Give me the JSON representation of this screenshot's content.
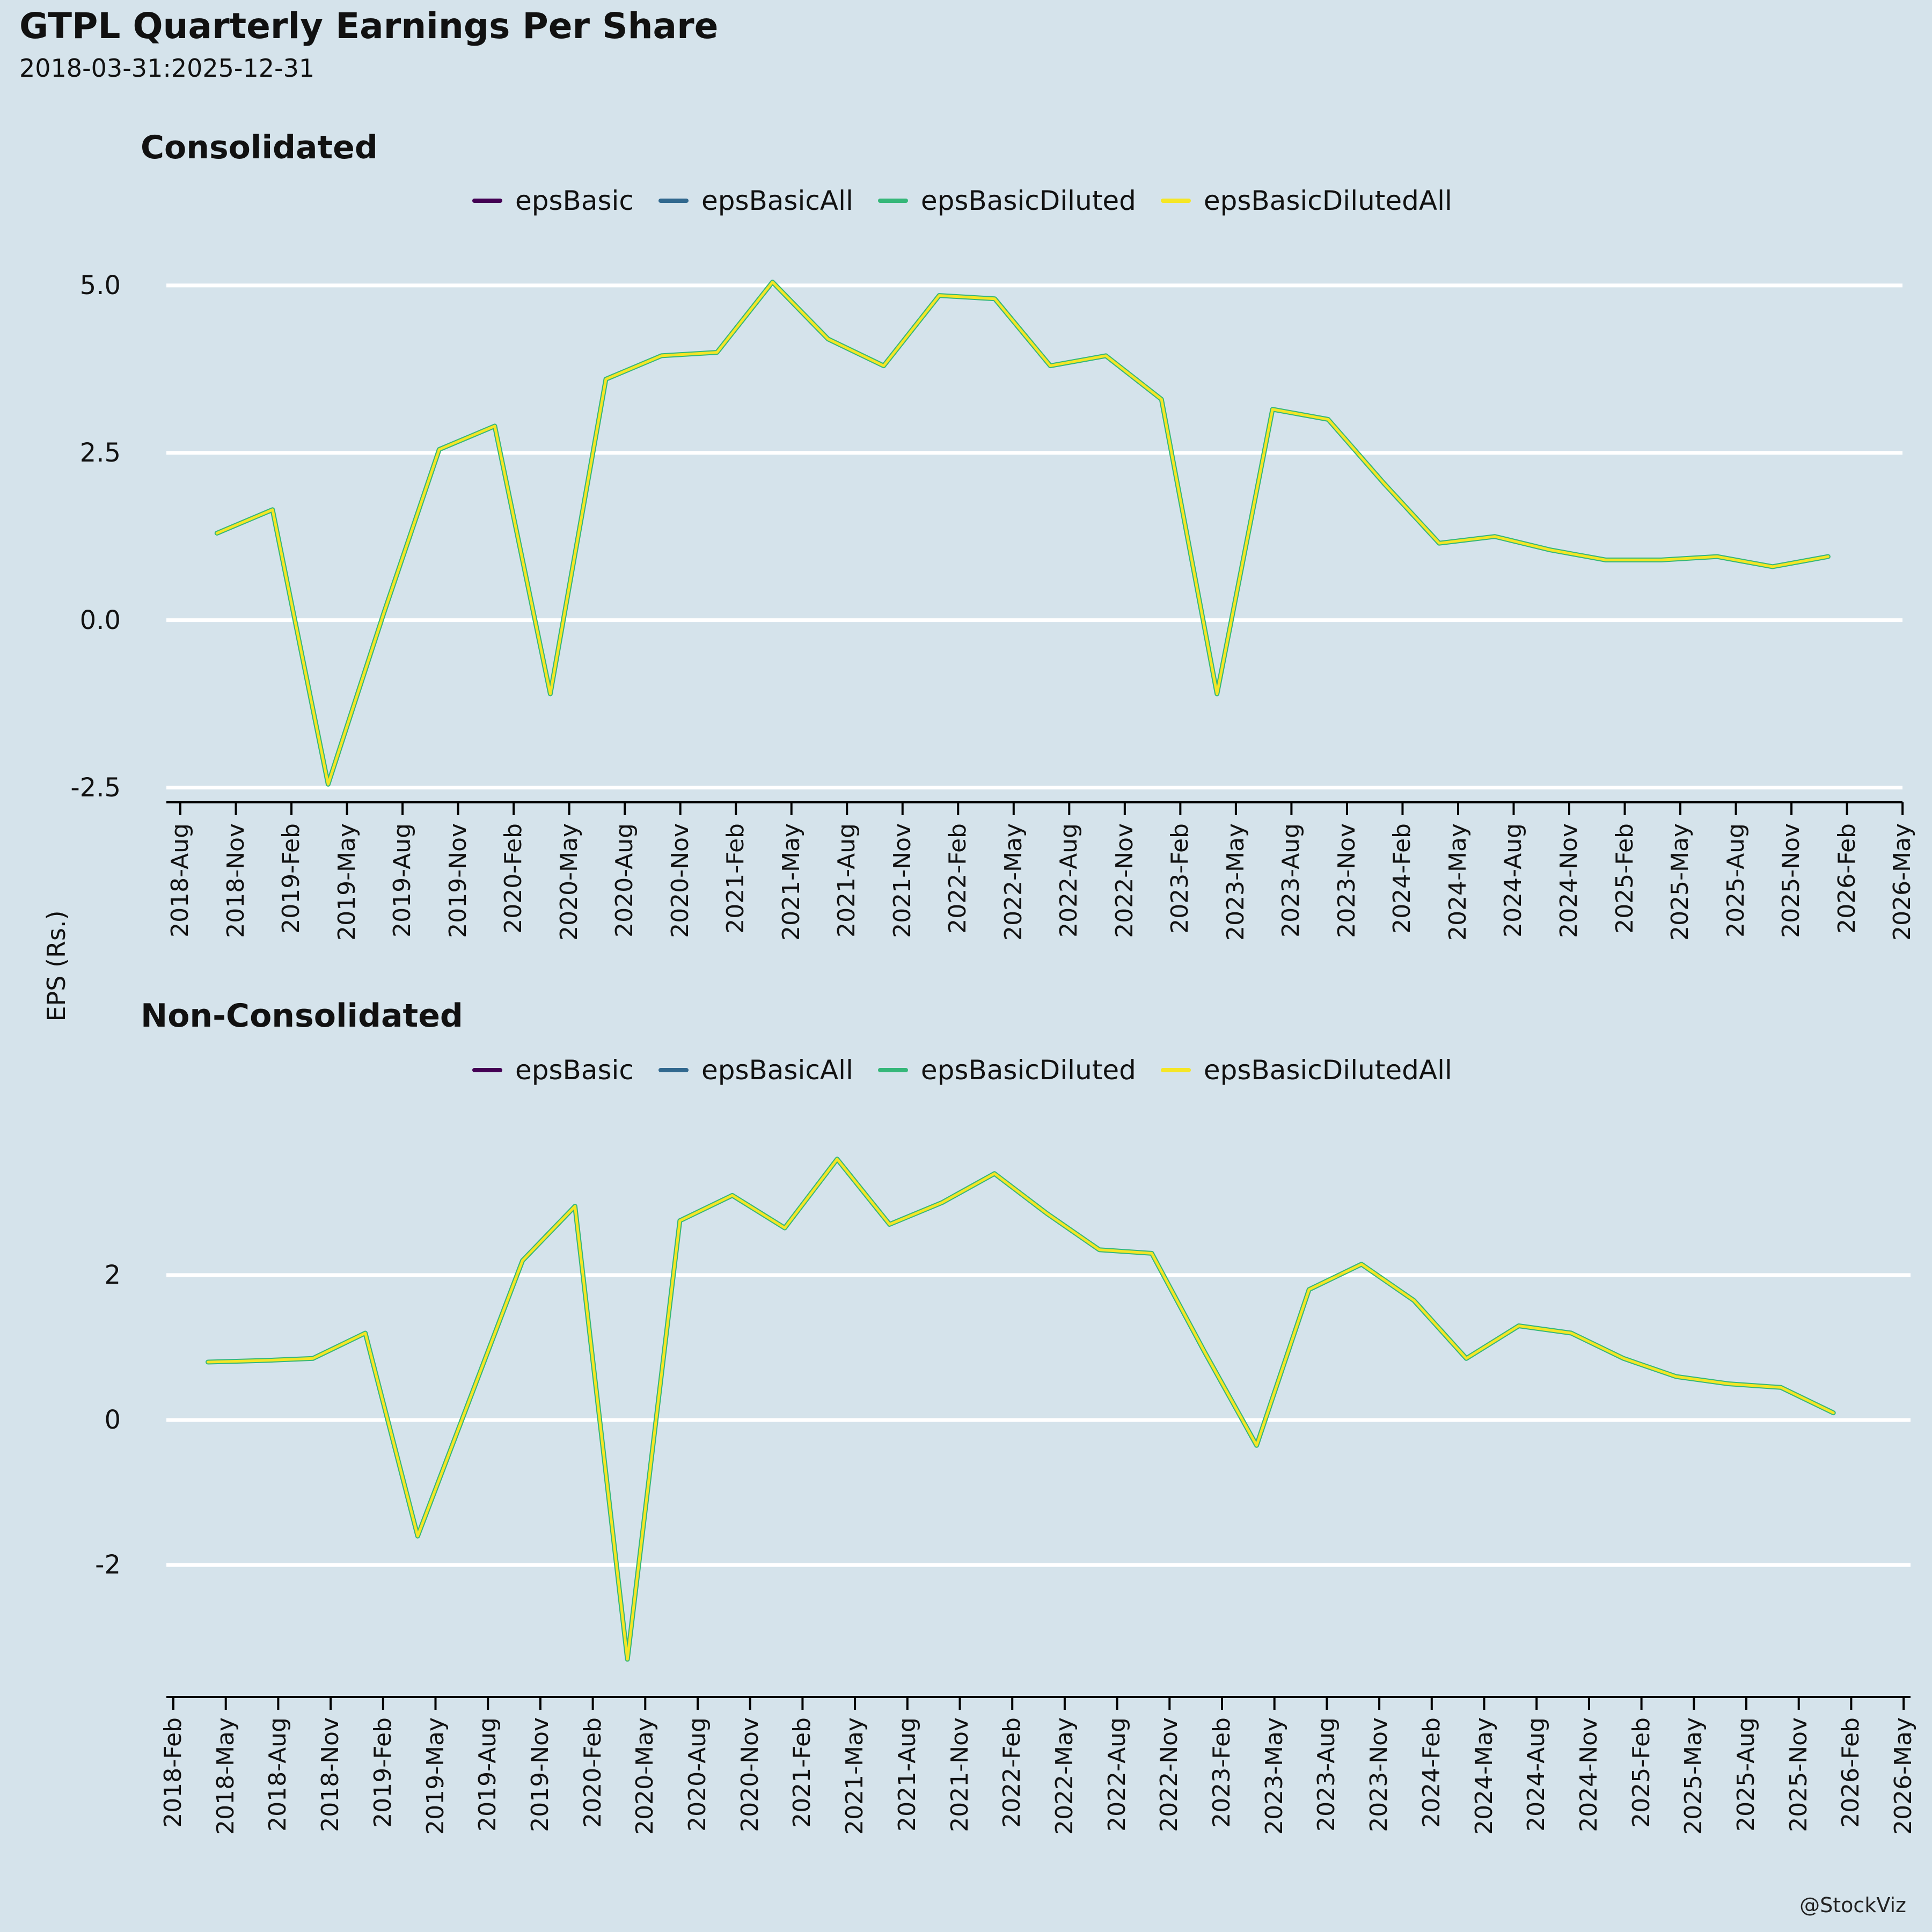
{
  "page": {
    "title": "GTPL Quarterly Earnings Per Share",
    "subtitle": "2018-03-31:2025-12-31",
    "ylabel": "EPS (Rs.)",
    "watermark": "@StockViz",
    "background_color": "#d5e3eb",
    "grid_color": "#ffffff",
    "axis_color": "#000000"
  },
  "legend": {
    "items": [
      {
        "label": "epsBasic",
        "color": "#440154"
      },
      {
        "label": "epsBasicAll",
        "color": "#31688e"
      },
      {
        "label": "epsBasicDiluted",
        "color": "#35b779"
      },
      {
        "label": "epsBasicDilutedAll",
        "color": "#f5e626"
      }
    ]
  },
  "chart_data": [
    {
      "type": "line",
      "title": "Consolidated",
      "ylabel": "EPS (Rs.)",
      "grid": true,
      "legend_position": "top-center",
      "note": "All four series (epsBasic, epsBasicAll, epsBasicDiluted, epsBasicDilutedAll) coincide; only the topmost yellow line is visible.",
      "ylim": [
        -2.72,
        5.56
      ],
      "yticks": [
        {
          "value": 5.0,
          "label": "5.0"
        },
        {
          "value": 2.5,
          "label": "2.5"
        },
        {
          "value": 0.0,
          "label": "0.0"
        },
        {
          "value": -2.5,
          "label": "-2.5"
        }
      ],
      "xticks": [
        "2018-Aug",
        "2018-Nov",
        "2019-Feb",
        "2019-May",
        "2019-Aug",
        "2019-Nov",
        "2020-Feb",
        "2020-May",
        "2020-Aug",
        "2020-Nov",
        "2021-Feb",
        "2021-May",
        "2021-Aug",
        "2021-Nov",
        "2022-Feb",
        "2022-May",
        "2022-Aug",
        "2022-Nov",
        "2023-Feb",
        "2023-May",
        "2023-Aug",
        "2023-Nov",
        "2024-Feb",
        "2024-May",
        "2024-Aug",
        "2024-Nov",
        "2025-Feb",
        "2025-May",
        "2025-Aug",
        "2025-Nov",
        "2026-Feb",
        "2026-May"
      ],
      "dates": [
        "2018-09-30",
        "2018-12-31",
        "2019-03-31",
        "2019-06-30",
        "2019-09-30",
        "2019-12-31",
        "2020-03-31",
        "2020-06-30",
        "2020-09-30",
        "2020-12-31",
        "2021-03-31",
        "2021-06-30",
        "2021-09-30",
        "2021-12-31",
        "2022-03-31",
        "2022-06-30",
        "2022-09-30",
        "2022-12-31",
        "2023-03-31",
        "2023-06-30",
        "2023-09-30",
        "2023-12-31",
        "2024-03-31",
        "2024-06-30",
        "2024-09-30",
        "2024-12-31",
        "2025-03-31",
        "2025-06-30",
        "2025-09-30",
        "2025-12-31"
      ],
      "values": [
        1.3,
        1.65,
        -2.45,
        0.1,
        2.55,
        2.9,
        -1.1,
        3.6,
        3.95,
        4.0,
        5.05,
        4.2,
        3.8,
        4.85,
        4.8,
        3.8,
        3.95,
        3.3,
        -1.1,
        3.15,
        3.0,
        2.05,
        1.15,
        1.25,
        1.05,
        0.9,
        0.9,
        0.95,
        0.8,
        0.95
      ],
      "series": [
        {
          "name": "epsBasic",
          "color": "#440154"
        },
        {
          "name": "epsBasicAll",
          "color": "#31688e"
        },
        {
          "name": "epsBasicDiluted",
          "color": "#35b779"
        },
        {
          "name": "epsBasicDilutedAll",
          "color": "#f5e626"
        }
      ]
    },
    {
      "type": "line",
      "title": "Non-Consolidated",
      "ylabel": "EPS (Rs.)",
      "grid": true,
      "legend_position": "top-center",
      "note": "All four series coincide; only the topmost yellow line is visible.",
      "ylim": [
        -3.82,
        4.08
      ],
      "yticks": [
        {
          "value": 2,
          "label": "2"
        },
        {
          "value": 0,
          "label": "0"
        },
        {
          "value": -2,
          "label": "-2"
        }
      ],
      "xticks": [
        "2018-Feb",
        "2018-May",
        "2018-Aug",
        "2018-Nov",
        "2019-Feb",
        "2019-May",
        "2019-Aug",
        "2019-Nov",
        "2020-Feb",
        "2020-May",
        "2020-Aug",
        "2020-Nov",
        "2021-Feb",
        "2021-May",
        "2021-Aug",
        "2021-Nov",
        "2022-Feb",
        "2022-May",
        "2022-Aug",
        "2022-Nov",
        "2023-Feb",
        "2023-May",
        "2023-Aug",
        "2023-Nov",
        "2024-Feb",
        "2024-May",
        "2024-Aug",
        "2024-Nov",
        "2025-Feb",
        "2025-May",
        "2025-Aug",
        "2025-Nov",
        "2026-Feb",
        "2026-May"
      ],
      "dates": [
        "2018-03-31",
        "2018-06-30",
        "2018-09-30",
        "2018-12-31",
        "2019-03-31",
        "2019-06-30",
        "2019-09-30",
        "2019-12-31",
        "2020-03-31",
        "2020-06-30",
        "2020-09-30",
        "2020-12-31",
        "2021-03-31",
        "2021-06-30",
        "2021-09-30",
        "2021-12-31",
        "2022-03-31",
        "2022-06-30",
        "2022-09-30",
        "2022-12-31",
        "2023-03-31",
        "2023-06-30",
        "2023-09-30",
        "2023-12-31",
        "2024-03-31",
        "2024-06-30",
        "2024-09-30",
        "2024-12-31",
        "2025-03-31",
        "2025-06-30",
        "2025-09-30",
        "2025-12-31"
      ],
      "values": [
        0.8,
        0.82,
        0.85,
        1.2,
        -1.6,
        0.3,
        2.2,
        2.95,
        -3.3,
        2.75,
        3.1,
        2.65,
        3.6,
        2.7,
        3.0,
        3.4,
        2.85,
        2.35,
        2.3,
        0.95,
        -0.35,
        1.8,
        2.15,
        1.65,
        0.85,
        1.3,
        1.2,
        0.85,
        0.6,
        0.5,
        0.45,
        0.1
      ],
      "series": [
        {
          "name": "epsBasic",
          "color": "#440154"
        },
        {
          "name": "epsBasicAll",
          "color": "#31688e"
        },
        {
          "name": "epsBasicDiluted",
          "color": "#35b779"
        },
        {
          "name": "epsBasicDilutedAll",
          "color": "#f5e626"
        }
      ]
    }
  ]
}
